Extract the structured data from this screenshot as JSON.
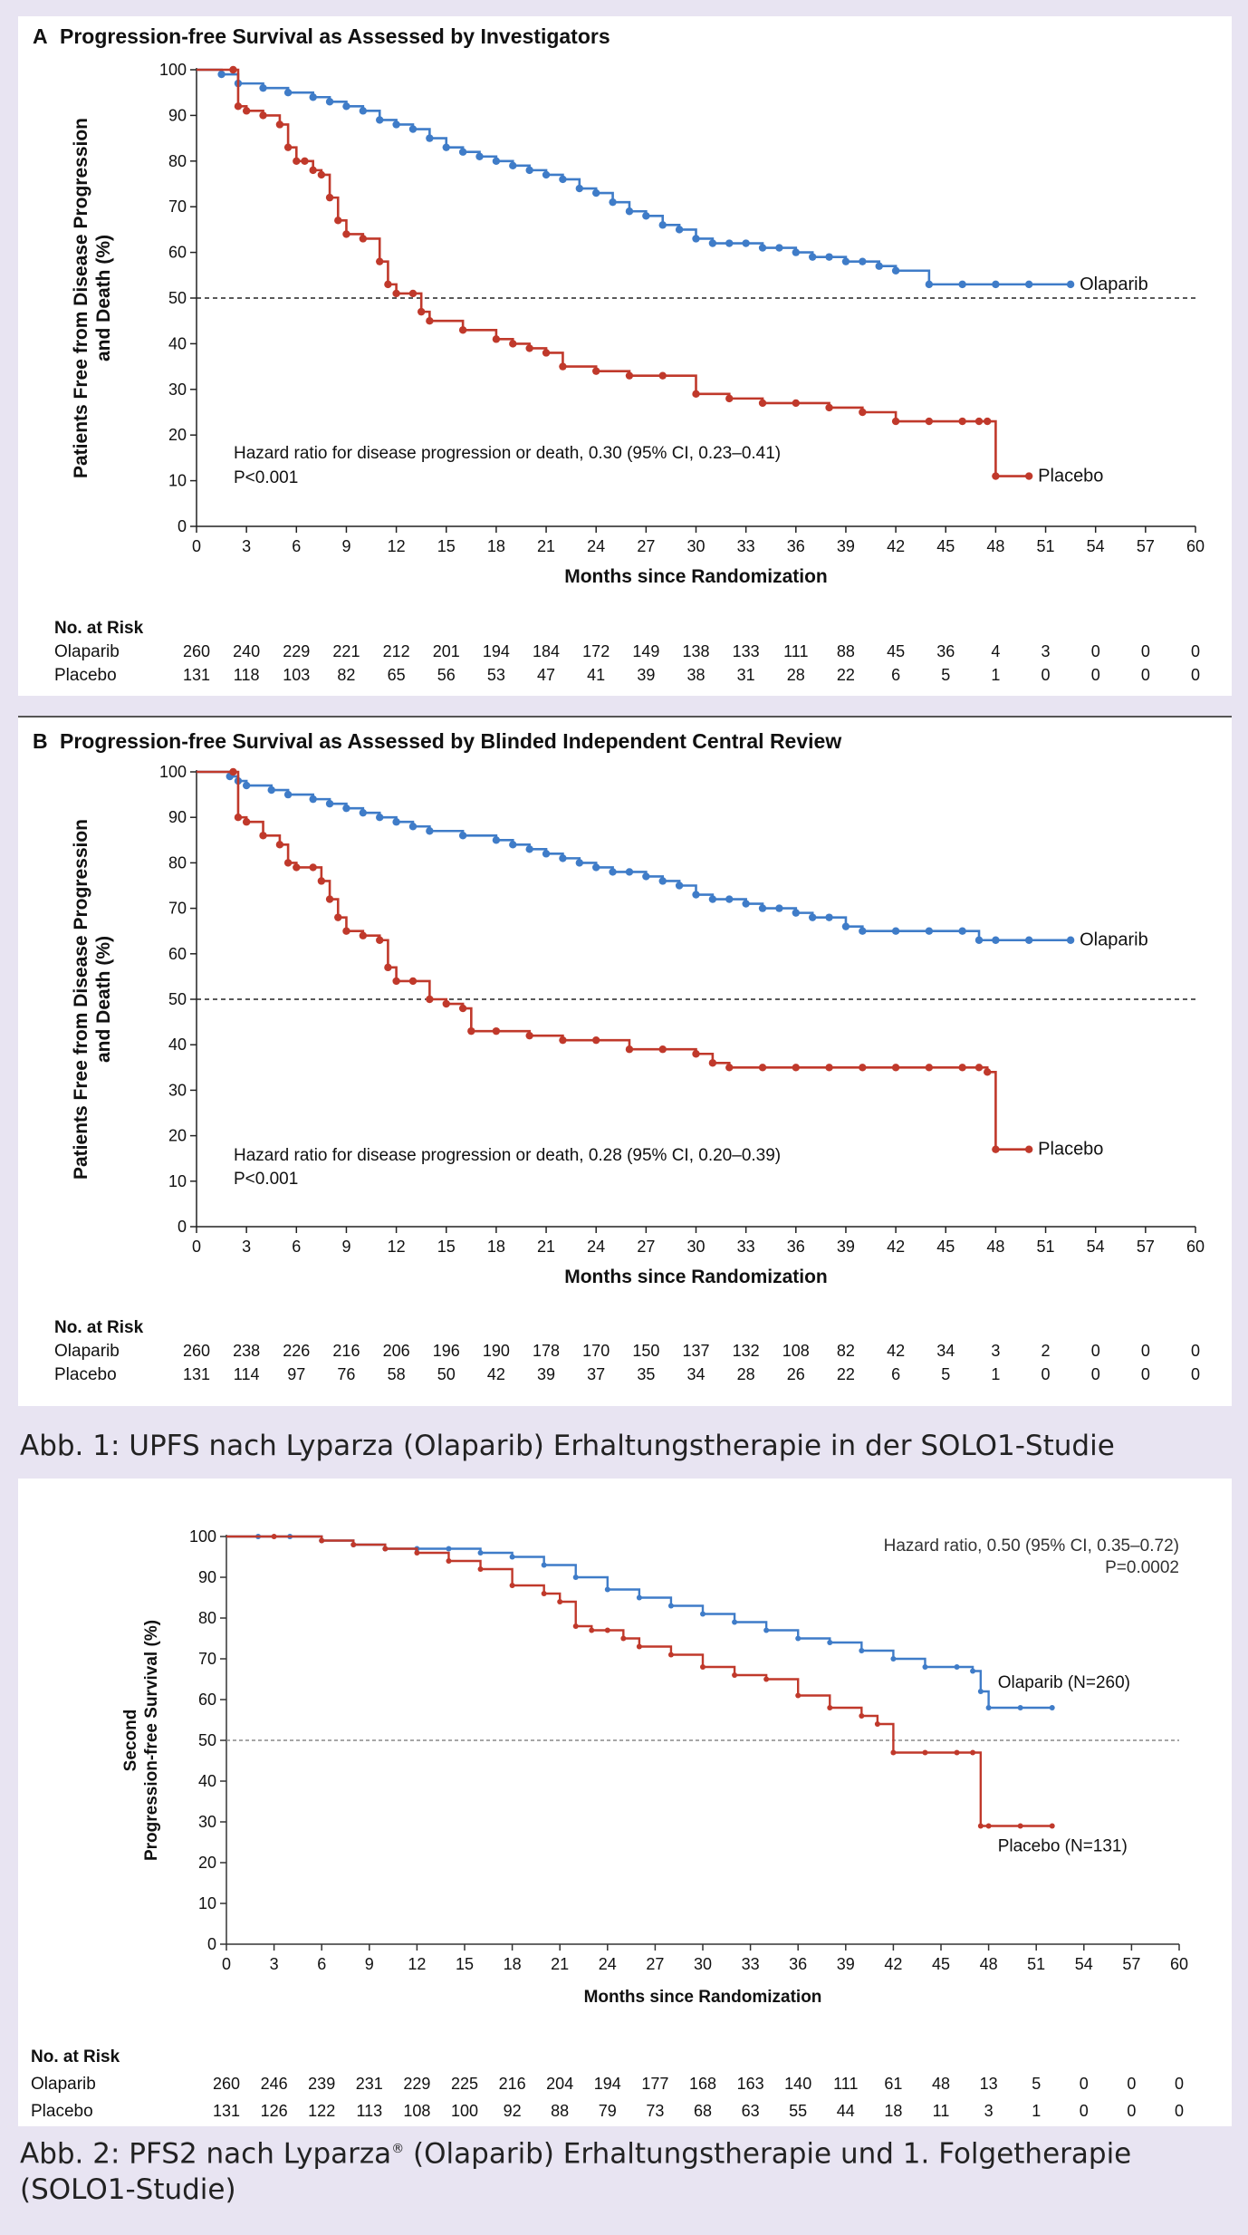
{
  "figure1": {
    "caption": "Abb. 1: UPFS nach Lyparza (Olaparib) Erhaltungstherapie in der SOLO1-Studie",
    "panels": [
      {
        "letter": "A",
        "title": "Progression-free Survival as Assessed by Investigators",
        "hr_text": "Hazard ratio for disease progression or death, 0.30 (95% CI, 0.23–0.41)",
        "p_text": "P<0.001",
        "risk_header": "No. at Risk",
        "risk": [
          {
            "label": "Olaparib",
            "values": [
              "260",
              "240",
              "229",
              "221",
              "212",
              "201",
              "194",
              "184",
              "172",
              "149",
              "138",
              "133",
              "111",
              "88",
              "45",
              "36",
              "4",
              "3",
              "0",
              "0",
              "0"
            ]
          },
          {
            "label": "Placebo",
            "values": [
              "131",
              "118",
              "103",
              "82",
              "65",
              "56",
              "53",
              "47",
              "41",
              "39",
              "38",
              "31",
              "28",
              "22",
              "6",
              "5",
              "1",
              "0",
              "0",
              "0",
              "0"
            ]
          }
        ]
      },
      {
        "letter": "B",
        "title": "Progression-free Survival as Assessed by Blinded Independent Central Review",
        "hr_text": "Hazard ratio for disease progression or death, 0.28 (95% CI, 0.20–0.39)",
        "p_text": "P<0.001",
        "risk_header": "No. at Risk",
        "risk": [
          {
            "label": "Olaparib",
            "values": [
              "260",
              "238",
              "226",
              "216",
              "206",
              "196",
              "190",
              "178",
              "170",
              "150",
              "137",
              "132",
              "108",
              "82",
              "42",
              "34",
              "3",
              "2",
              "0",
              "0",
              "0"
            ]
          },
          {
            "label": "Placebo",
            "values": [
              "131",
              "114",
              "97",
              "76",
              "58",
              "50",
              "42",
              "39",
              "37",
              "35",
              "34",
              "28",
              "26",
              "22",
              "6",
              "5",
              "1",
              "0",
              "0",
              "0",
              "0"
            ]
          }
        ]
      }
    ]
  },
  "figure2": {
    "caption_before_mark": "Abb. 2: PFS2 nach Lyparza",
    "caption_mark": "®",
    "caption_after_mark": " (Olaparib) Erhaltungstherapie und 1. Folgetherapie (SOLO1-Studie)",
    "hr_line1": "Hazard ratio, 0.50 (95% CI, 0.35–0.72)",
    "hr_line2": "P=0.0002",
    "risk_header": "No. at Risk",
    "risk": [
      {
        "label": "Olaparib",
        "values": [
          "260",
          "246",
          "239",
          "231",
          "229",
          "225",
          "216",
          "204",
          "194",
          "177",
          "168",
          "163",
          "140",
          "111",
          "61",
          "48",
          "13",
          "5",
          "0",
          "0",
          "0"
        ]
      },
      {
        "label": "Placebo",
        "values": [
          "131",
          "126",
          "122",
          "113",
          "108",
          "100",
          "92",
          "88",
          "79",
          "73",
          "68",
          "63",
          "55",
          "44",
          "18",
          "11",
          "3",
          "1",
          "0",
          "0",
          "0"
        ]
      }
    ]
  },
  "chart_data": [
    {
      "type": "line",
      "title": "Progression-free Survival as Assessed by Investigators",
      "xlabel": "Months since Randomization",
      "ylabel": "Patients Free from Disease Progression and Death (%)",
      "xlim": [
        0,
        60
      ],
      "ylim": [
        0,
        100
      ],
      "x_ticks": [
        "0",
        "3",
        "6",
        "9",
        "12",
        "15",
        "18",
        "21",
        "24",
        "27",
        "30",
        "33",
        "36",
        "39",
        "42",
        "45",
        "48",
        "51",
        "54",
        "57",
        "60"
      ],
      "y_ticks": [
        "0",
        "10",
        "20",
        "30",
        "40",
        "50",
        "60",
        "70",
        "80",
        "90",
        "100"
      ],
      "reference_line_y": 50,
      "legend": "inline labels at curve ends",
      "series": [
        {
          "name": "Olaparib",
          "color": "#3f7cc8",
          "x": [
            0,
            1.5,
            2.5,
            4,
            5.5,
            7,
            8,
            9,
            10,
            11,
            12,
            13,
            14,
            15,
            16,
            17,
            18,
            19,
            20,
            21,
            22,
            23,
            24,
            25,
            26,
            27,
            28,
            29,
            30,
            31,
            32,
            33,
            34,
            35,
            36,
            37,
            38,
            39,
            40,
            41,
            42,
            44,
            46,
            48,
            50,
            52.5
          ],
          "y": [
            100,
            99,
            97,
            96,
            95,
            94,
            93,
            92,
            91,
            89,
            88,
            87,
            85,
            83,
            82,
            81,
            80,
            79,
            78,
            77,
            76,
            74,
            73,
            71,
            69,
            68,
            66,
            65,
            63,
            62,
            62,
            62,
            61,
            61,
            60,
            59,
            59,
            58,
            58,
            57,
            56,
            53,
            53,
            53,
            53,
            53
          ]
        },
        {
          "name": "Placebo",
          "color": "#c0392b",
          "x": [
            0,
            2.2,
            2.5,
            3,
            4,
            5,
            5.5,
            6,
            6.5,
            7,
            7.5,
            8,
            8.5,
            9,
            10,
            11,
            11.5,
            12,
            13,
            13.5,
            14,
            16,
            18,
            19,
            20,
            21,
            22,
            24,
            26,
            28,
            30,
            32,
            34,
            36,
            38,
            40,
            42,
            44,
            46,
            47,
            47.5,
            48,
            50
          ],
          "y": [
            100,
            100,
            92,
            91,
            90,
            88,
            83,
            80,
            80,
            78,
            77,
            72,
            67,
            64,
            63,
            58,
            53,
            51,
            51,
            47,
            45,
            43,
            41,
            40,
            39,
            38,
            35,
            34,
            33,
            33,
            29,
            28,
            27,
            27,
            26,
            25,
            23,
            23,
            23,
            23,
            23,
            11,
            11
          ]
        }
      ]
    },
    {
      "type": "line",
      "title": "Progression-free Survival as Assessed by Blinded Independent Central Review",
      "xlabel": "Months since Randomization",
      "ylabel": "Patients Free from Disease Progression and Death (%)",
      "xlim": [
        0,
        60
      ],
      "ylim": [
        0,
        100
      ],
      "x_ticks": [
        "0",
        "3",
        "6",
        "9",
        "12",
        "15",
        "18",
        "21",
        "24",
        "27",
        "30",
        "33",
        "36",
        "39",
        "42",
        "45",
        "48",
        "51",
        "54",
        "57",
        "60"
      ],
      "y_ticks": [
        "0",
        "10",
        "20",
        "30",
        "40",
        "50",
        "60",
        "70",
        "80",
        "90",
        "100"
      ],
      "reference_line_y": 50,
      "legend": "inline labels at curve ends",
      "series": [
        {
          "name": "Olaparib",
          "color": "#3f7cc8",
          "x": [
            0,
            2,
            2.5,
            3,
            4.5,
            5.5,
            7,
            8,
            9,
            10,
            11,
            12,
            13,
            14,
            16,
            18,
            19,
            20,
            21,
            22,
            23,
            24,
            25,
            26,
            27,
            28,
            29,
            30,
            31,
            32,
            33,
            34,
            35,
            36,
            37,
            38,
            39,
            40,
            42,
            44,
            46,
            47,
            48,
            50,
            52.5
          ],
          "y": [
            100,
            99,
            98,
            97,
            96,
            95,
            94,
            93,
            92,
            91,
            90,
            89,
            88,
            87,
            86,
            85,
            84,
            83,
            82,
            81,
            80,
            79,
            78,
            78,
            77,
            76,
            75,
            73,
            72,
            72,
            71,
            70,
            70,
            69,
            68,
            68,
            66,
            65,
            65,
            65,
            65,
            63,
            63,
            63,
            63
          ]
        },
        {
          "name": "Placebo",
          "color": "#c0392b",
          "x": [
            0,
            2.2,
            2.5,
            3,
            4,
            5,
            5.5,
            6,
            7,
            7.5,
            8,
            8.5,
            9,
            10,
            11,
            11.5,
            12,
            13,
            14,
            15,
            16,
            16.5,
            18,
            20,
            22,
            24,
            26,
            28,
            30,
            31,
            32,
            34,
            36,
            38,
            40,
            42,
            44,
            46,
            47,
            47.5,
            48,
            50
          ],
          "y": [
            100,
            100,
            90,
            89,
            86,
            84,
            80,
            79,
            79,
            76,
            72,
            68,
            65,
            64,
            63,
            57,
            54,
            54,
            50,
            49,
            48,
            43,
            43,
            42,
            41,
            41,
            39,
            39,
            38,
            36,
            35,
            35,
            35,
            35,
            35,
            35,
            35,
            35,
            35,
            34,
            17,
            17
          ]
        }
      ]
    },
    {
      "type": "line",
      "title": "",
      "xlabel": "Months since Randomization",
      "ylabel": "Second Progression-free Survival (%)",
      "xlim": [
        0,
        60
      ],
      "ylim": [
        0,
        100
      ],
      "x_ticks": [
        "0",
        "3",
        "6",
        "9",
        "12",
        "15",
        "18",
        "21",
        "24",
        "27",
        "30",
        "33",
        "36",
        "39",
        "42",
        "45",
        "48",
        "51",
        "54",
        "57",
        "60"
      ],
      "y_ticks": [
        "0",
        "10",
        "20",
        "30",
        "40",
        "50",
        "60",
        "70",
        "80",
        "90",
        "100"
      ],
      "reference_line_y": 50,
      "legend": "inline labels at curve ends",
      "series": [
        {
          "name": "Olaparib (N=260)",
          "color": "#3f7cc8",
          "x": [
            0,
            2,
            4,
            6,
            8,
            10,
            12,
            14,
            16,
            18,
            20,
            22,
            24,
            26,
            28,
            30,
            32,
            34,
            36,
            38,
            40,
            42,
            44,
            46,
            47,
            47.5,
            48,
            50,
            52
          ],
          "y": [
            100,
            100,
            100,
            99,
            98,
            97,
            97,
            97,
            96,
            95,
            93,
            90,
            87,
            85,
            83,
            81,
            79,
            77,
            75,
            74,
            72,
            70,
            68,
            68,
            67,
            62,
            58,
            58,
            58
          ]
        },
        {
          "name": "Placebo (N=131)",
          "color": "#c0392b",
          "x": [
            0,
            3,
            6,
            8,
            10,
            12,
            14,
            16,
            18,
            20,
            21,
            22,
            23,
            24,
            25,
            26,
            28,
            30,
            32,
            34,
            36,
            38,
            40,
            41,
            42,
            44,
            46,
            47,
            47.5,
            48,
            50,
            52
          ],
          "y": [
            100,
            100,
            99,
            98,
            97,
            96,
            94,
            92,
            88,
            86,
            84,
            78,
            77,
            77,
            75,
            73,
            71,
            68,
            66,
            65,
            61,
            58,
            56,
            54,
            47,
            47,
            47,
            47,
            29,
            29,
            29,
            29
          ]
        }
      ]
    }
  ],
  "colors": {
    "olaparib": "#3f7cc8",
    "placebo": "#c0392b",
    "page_background": "#e8e4f2"
  }
}
